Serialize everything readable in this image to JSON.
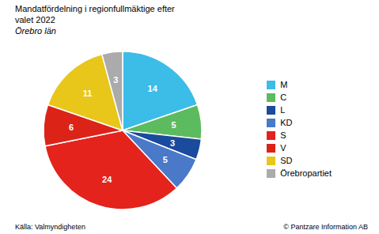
{
  "chart_data": {
    "type": "pie",
    "title": "Mandatfördelning i regionfullmäktige efter\nvalet 2022",
    "subtitle": "Örebro län",
    "categories": [
      "M",
      "C",
      "L",
      "KD",
      "S",
      "V",
      "SD",
      "Örebropartiet"
    ],
    "values": [
      14,
      5,
      3,
      5,
      24,
      6,
      11,
      3
    ],
    "colors": [
      "#3BBDE8",
      "#5CBB5E",
      "#1A4B9C",
      "#4979C8",
      "#E3231C",
      "#DC2318",
      "#E8C61A",
      "#ABABAB"
    ],
    "data_labels": true,
    "legend": "right",
    "annotations": [
      "Källa: Valmyndigheten",
      "© Pantzare Information AB"
    ]
  }
}
